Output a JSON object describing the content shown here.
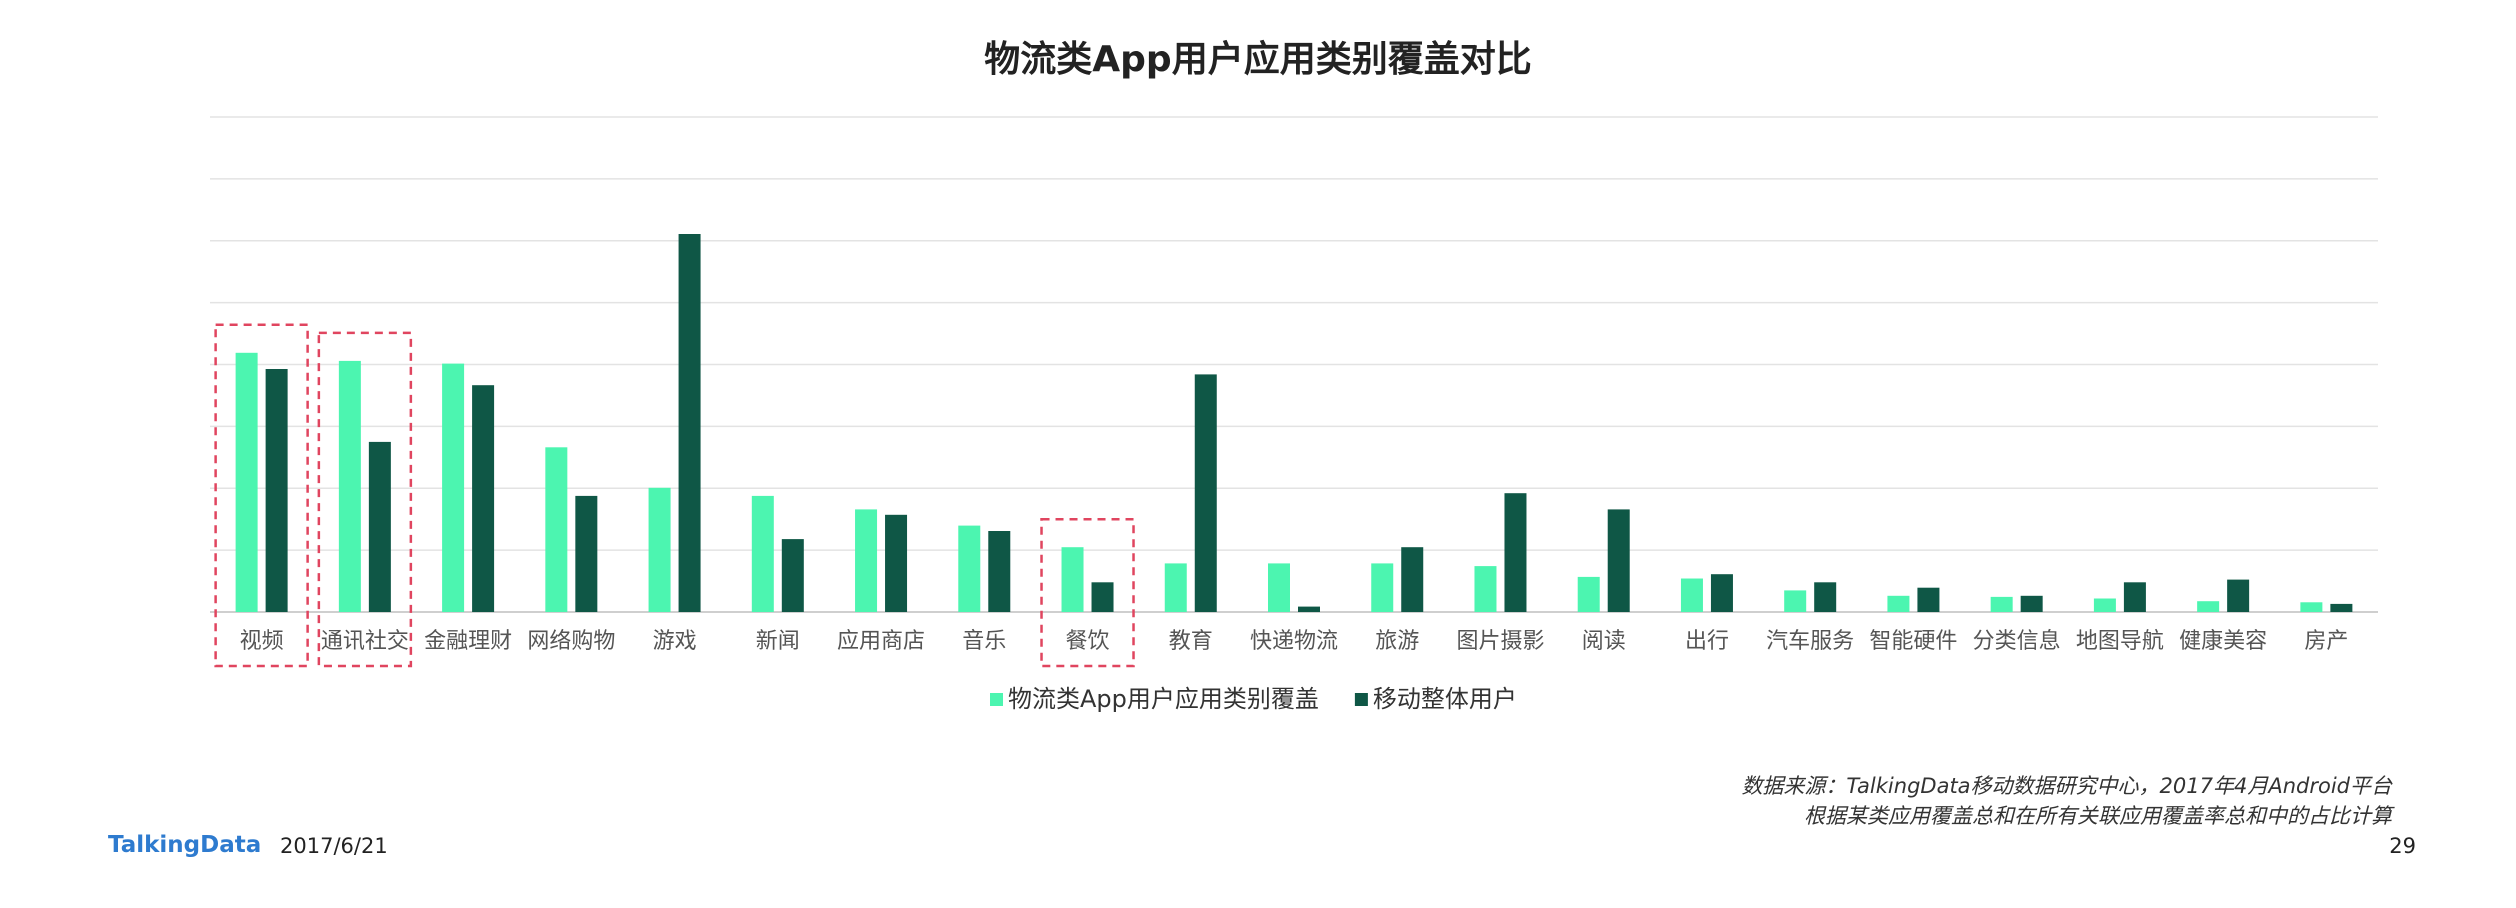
{
  "chart_data": {
    "type": "bar",
    "title": "物流类App用户应用类别覆盖对比",
    "categories": [
      "视频",
      "通讯社交",
      "金融理财",
      "网络购物",
      "游戏",
      "新闻",
      "应用商店",
      "音乐",
      "餐饮",
      "教育",
      "快递物流",
      "旅游",
      "图片摄影",
      "阅读",
      "出行",
      "汽车服务",
      "智能硬件",
      "分类信息",
      "地图导航",
      "健康美容",
      "房产"
    ],
    "series": [
      {
        "name": "物流类App用户应用类别覆盖",
        "color": "#4cf5b0",
        "values": [
          4.8,
          4.65,
          4.6,
          3.05,
          2.3,
          2.15,
          1.9,
          1.6,
          1.2,
          0.9,
          0.9,
          0.9,
          0.85,
          0.65,
          0.62,
          0.4,
          0.3,
          0.28,
          0.25,
          0.2,
          0.18
        ]
      },
      {
        "name": "移动整体用户",
        "color": "#0f5746",
        "values": [
          4.5,
          3.15,
          4.2,
          2.15,
          7.0,
          1.35,
          1.8,
          1.5,
          0.55,
          4.4,
          0.1,
          1.2,
          2.2,
          1.9,
          0.7,
          0.55,
          0.45,
          0.3,
          0.55,
          0.6,
          0.15
        ]
      }
    ],
    "ylim": [
      0,
      8
    ],
    "grid": true,
    "y_tick_labels_visible": false,
    "legend_position": "bottom-center",
    "highlighted_categories": [
      "视频",
      "通讯社交",
      "餐饮"
    ],
    "highlight_color": "#e0455f"
  },
  "source_note": {
    "line1": "数据来源：TalkingData移动数据研究中心，2017年4月Android平台",
    "line2": "根据某类应用覆盖总和在所有关联应用覆盖率总和中的占比计算"
  },
  "footer": {
    "logo": "TalkingData",
    "date": "2017/6/21",
    "page_number": "29"
  }
}
